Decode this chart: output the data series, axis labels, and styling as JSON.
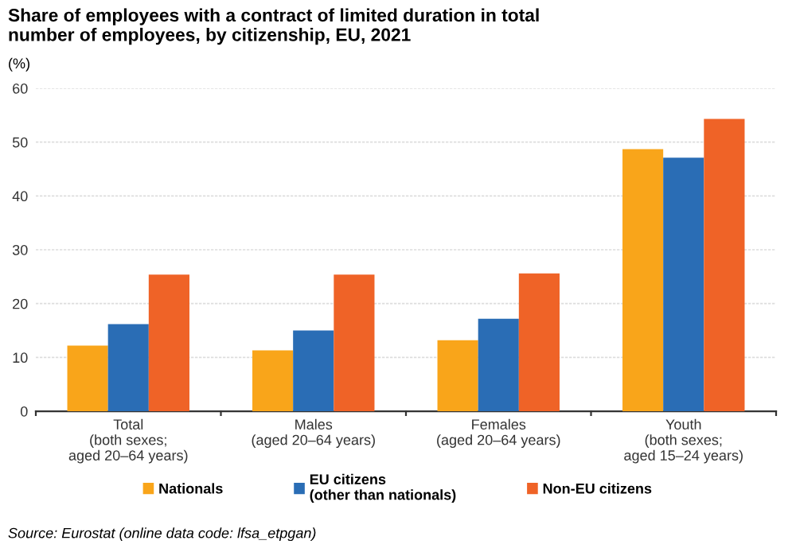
{
  "chart_data": {
    "type": "bar",
    "title": "Share of employees with a contract of limited duration in total\nnumber of employees, by citizenship, EU, 2021",
    "ylabel": "(%)",
    "categories": [
      "Total\n(both sexes;\naged 20–64 years)",
      "Males\n(aged 20–64 years)",
      "Females\n(aged 20–64 years)",
      "Youth\n(both sexes;\naged 15–24 years)"
    ],
    "series": [
      {
        "name": "Nationals",
        "color": "#f9a51a",
        "values": [
          12.2,
          11.3,
          13.2,
          48.7
        ]
      },
      {
        "name": "EU citizens\n(other than nationals)",
        "color": "#2a6db5",
        "values": [
          16.2,
          15.0,
          17.2,
          47.1
        ]
      },
      {
        "name": "Non-EU citizens",
        "color": "#ef6327",
        "values": [
          25.4,
          25.4,
          25.6,
          54.3
        ]
      }
    ],
    "ylim": [
      0,
      60
    ],
    "yticks": [
      0,
      10,
      20,
      30,
      40,
      50,
      60
    ],
    "grid": "y",
    "legend": "bottom",
    "annotations": [
      "Source: Eurostat (online data code: lfsa_etpgan)"
    ]
  }
}
